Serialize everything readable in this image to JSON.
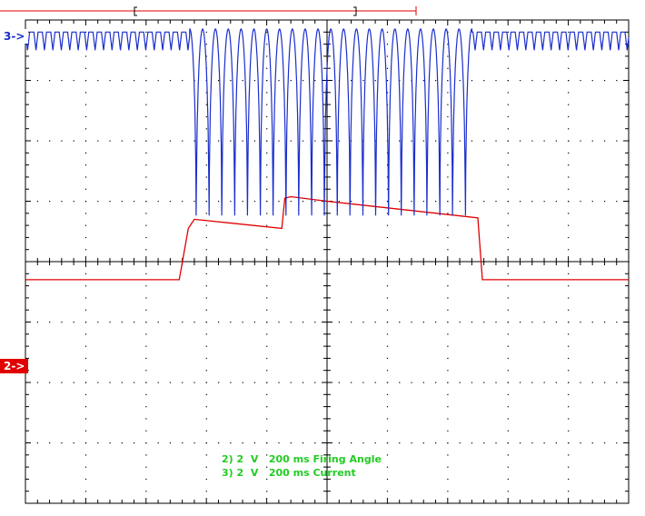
{
  "channels": {
    "ch3_marker": "3->",
    "ch2_marker": "2->",
    "ch3_color": "#1a2ecc",
    "ch2_color": "#e00000",
    "grid_color": "#000000",
    "caption_color": "#22cc22"
  },
  "captions": [
    "2) 2  V   200 ms Firing Angle",
    "3) 2  V   200 ms Current"
  ],
  "chart_data": {
    "type": "line",
    "grid": true,
    "divisions": {
      "x": 10,
      "y": 8
    },
    "x_unit": "ms",
    "x_per_div": 200,
    "xlim": [
      0,
      2000
    ],
    "series": [
      {
        "name": "Firing Angle",
        "channel": 2,
        "volts_per_div": 2,
        "color": "#e00000",
        "points": [
          [
            0,
            -0.6
          ],
          [
            510,
            -0.6
          ],
          [
            540,
            1.1
          ],
          [
            560,
            1.4
          ],
          [
            850,
            1.1
          ],
          [
            860,
            2.1
          ],
          [
            880,
            2.15
          ],
          [
            1000,
            2.0
          ],
          [
            1500,
            1.45
          ],
          [
            1515,
            -0.6
          ],
          [
            2000,
            -0.6
          ]
        ]
      },
      {
        "name": "Current",
        "channel": 3,
        "volts_per_div": 2,
        "color": "#1a2ecc",
        "idle_level_v": 7.6,
        "idle_ripple_v": 0.6,
        "burst_low_v": -0.5,
        "burst_peak_v": 7.7,
        "burst_start_ms": 545,
        "burst_end_ms": 1480,
        "burst_cycles": 22
      }
    ]
  }
}
